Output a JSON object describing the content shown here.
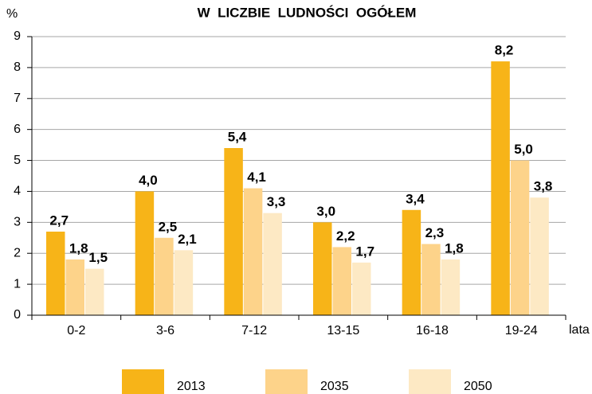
{
  "chart_data": {
    "type": "bar",
    "title": "W  LICZBIE  LUDNOŚCI  OGÓŁEM",
    "y_label": "%",
    "x_label": "lata",
    "categories": [
      "0-2",
      "3-6",
      "7-12",
      "13-15",
      "16-18",
      "19-24"
    ],
    "series": [
      {
        "name": "2013",
        "color": "#f7b418",
        "values": [
          2.7,
          4.0,
          5.4,
          3.0,
          3.4,
          8.2
        ],
        "value_labels": [
          "2,7",
          "4,0",
          "5,4",
          "3,0",
          "3,4",
          "8,2"
        ]
      },
      {
        "name": "2035",
        "color": "#fdd38a",
        "values": [
          1.8,
          2.5,
          4.1,
          2.2,
          2.3,
          5.0
        ],
        "value_labels": [
          "1,8",
          "2,5",
          "4,1",
          "2,2",
          "2,3",
          "5,0"
        ]
      },
      {
        "name": "2050",
        "color": "#fde9c4",
        "values": [
          1.5,
          2.1,
          3.3,
          1.7,
          1.8,
          3.8
        ],
        "value_labels": [
          "1,5",
          "2,1",
          "3,3",
          "1,7",
          "1,8",
          "3,8"
        ]
      }
    ],
    "ylim": [
      0,
      9
    ],
    "yticks": [
      0,
      1,
      2,
      3,
      4,
      5,
      6,
      7,
      8,
      9
    ],
    "grid": true,
    "legend": "bottom"
  }
}
